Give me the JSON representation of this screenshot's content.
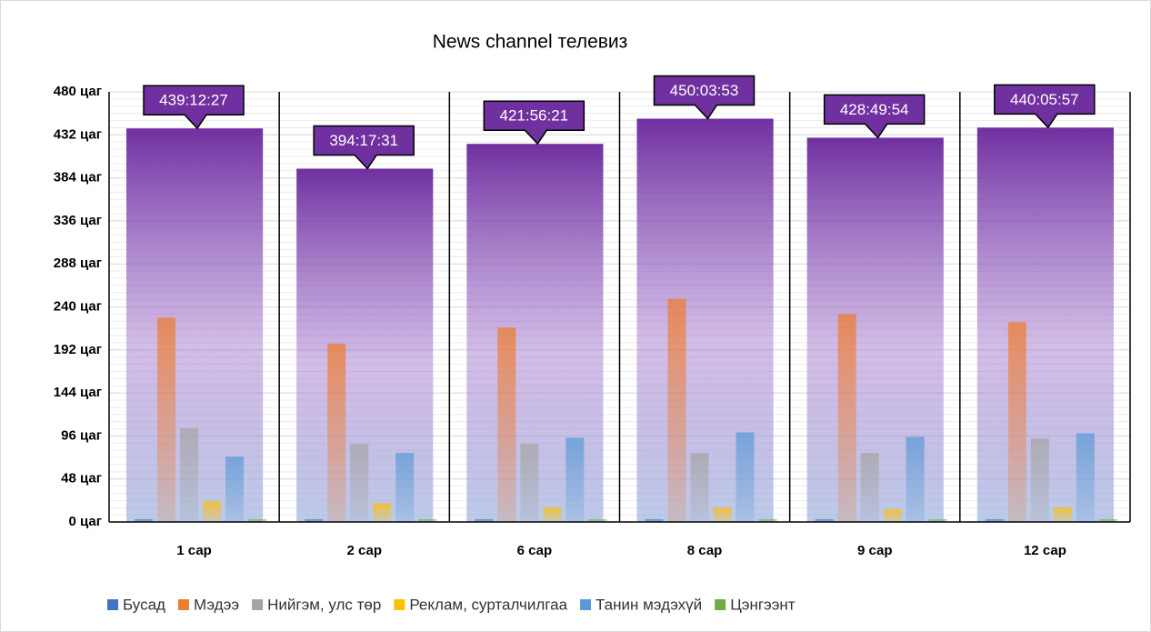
{
  "chart_data": {
    "type": "bar",
    "title": "News channel телевиз",
    "categories": [
      "1 сар",
      "2 сар",
      "6 сар",
      "8 сар",
      "9 сар",
      "12 сар"
    ],
    "totals": {
      "color": "#7030a0",
      "values": [
        439.2075,
        394.2919,
        421.9392,
        450.0647,
        428.8317,
        440.0992
      ],
      "value_labels": [
        "439:12:27",
        "394:17:31",
        "421:56:21",
        "450:03:53",
        "428:49:54",
        "440:05:57"
      ]
    },
    "series": [
      {
        "name": "Бусад",
        "color": "#4472c4",
        "values": [
          3,
          3,
          3,
          3,
          3,
          3
        ]
      },
      {
        "name": "Мэдээ",
        "color": "#ed7d31",
        "values": [
          228,
          199,
          217,
          249,
          232,
          223
        ]
      },
      {
        "name": "Нийгэм, улс төр",
        "color": "#a5a5a5",
        "values": [
          105,
          87,
          87,
          77,
          77,
          93
        ]
      },
      {
        "name": "Реклам, сурталчилгаа",
        "color": "#ffc000",
        "values": [
          23,
          21,
          16,
          16,
          14,
          16
        ]
      },
      {
        "name": "Танин мэдэхүй",
        "color": "#5b9bd5",
        "values": [
          73,
          77,
          94,
          100,
          95,
          99
        ]
      },
      {
        "name": "Цэнгээнт",
        "color": "#70ad47",
        "values": [
          3,
          3,
          3,
          3,
          3,
          3
        ]
      }
    ],
    "ylim": [
      0,
      480
    ],
    "yticks": [
      {
        "value": 0,
        "label": "0 цаг"
      },
      {
        "value": 48,
        "label": "48 цаг"
      },
      {
        "value": 96,
        "label": "96 цаг"
      },
      {
        "value": 144,
        "label": "144 цаг"
      },
      {
        "value": 192,
        "label": "192 цаг"
      },
      {
        "value": 240,
        "label": "240 цаг"
      },
      {
        "value": 288,
        "label": "288 цаг"
      },
      {
        "value": 336,
        "label": "336 цаг"
      },
      {
        "value": 384,
        "label": "384 цаг"
      },
      {
        "value": 432,
        "label": "432 цаг"
      },
      {
        "value": 480,
        "label": "480 цаг"
      }
    ],
    "grid": true,
    "legend": "bottom"
  }
}
